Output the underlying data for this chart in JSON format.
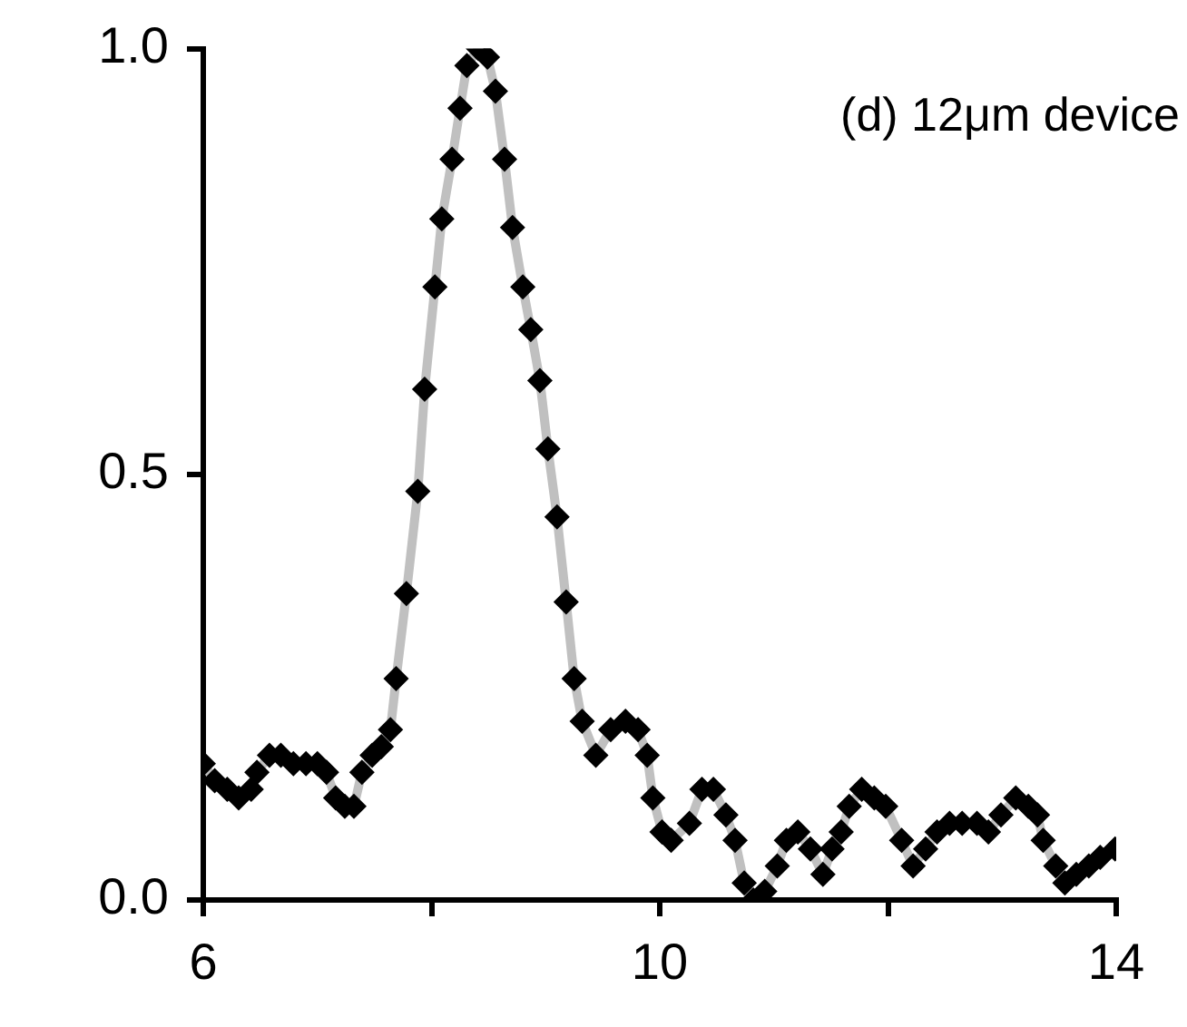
{
  "chart_data": {
    "type": "line",
    "annotations": [
      "(d) 12μm device"
    ],
    "xlim": [
      6,
      14
    ],
    "xticks": [
      6,
      {
        "value": 8,
        "label": null
      },
      10,
      {
        "value": 12,
        "label": null
      },
      14
    ],
    "ylim": [
      0,
      1
    ],
    "yticks": [
      {
        "value": 0,
        "label": "0.0"
      },
      {
        "value": 0.5,
        "label": "0.5"
      },
      {
        "value": 1,
        "label": "1.0"
      }
    ],
    "grid": false,
    "legend": false,
    "marker": "diamond",
    "line_style": "solid",
    "series": [
      {
        "color": "#000000",
        "x": [
          6.0,
          6.1,
          6.21,
          6.31,
          6.42,
          6.47,
          6.58,
          6.68,
          6.79,
          6.9,
          7.0,
          7.08,
          7.16,
          7.24,
          7.32,
          7.39,
          7.48,
          7.56,
          7.64,
          7.69,
          7.78,
          7.88,
          7.94,
          8.03,
          8.09,
          8.18,
          8.25,
          8.31,
          8.41,
          8.49,
          8.56,
          8.64,
          8.71,
          8.8,
          8.87,
          8.95,
          9.02,
          9.1,
          9.18,
          9.25,
          9.32,
          9.44,
          9.57,
          9.7,
          9.81,
          9.89,
          9.94,
          10.02,
          10.1,
          10.26,
          10.37,
          10.47,
          10.58,
          10.66,
          10.74,
          10.82,
          10.92,
          11.03,
          11.11,
          11.21,
          11.32,
          11.43,
          11.51,
          11.59,
          11.66,
          11.77,
          11.88,
          11.98,
          12.12,
          12.22,
          12.33,
          12.43,
          12.54,
          12.65,
          12.78,
          12.88,
          12.99,
          13.12,
          13.23,
          13.31,
          13.36,
          13.47,
          13.55,
          13.65,
          13.76,
          13.86,
          13.99
        ],
        "values": [
          0.16,
          0.14,
          0.13,
          0.12,
          0.13,
          0.15,
          0.17,
          0.17,
          0.16,
          0.16,
          0.16,
          0.15,
          0.12,
          0.11,
          0.11,
          0.15,
          0.17,
          0.18,
          0.2,
          0.26,
          0.36,
          0.48,
          0.6,
          0.72,
          0.8,
          0.87,
          0.93,
          0.98,
          1.0,
          0.99,
          0.95,
          0.87,
          0.79,
          0.72,
          0.67,
          0.61,
          0.53,
          0.45,
          0.35,
          0.26,
          0.21,
          0.17,
          0.2,
          0.21,
          0.2,
          0.17,
          0.12,
          0.08,
          0.07,
          0.09,
          0.13,
          0.13,
          0.1,
          0.07,
          0.02,
          0.0,
          0.01,
          0.04,
          0.07,
          0.08,
          0.06,
          0.03,
          0.06,
          0.08,
          0.11,
          0.13,
          0.12,
          0.11,
          0.07,
          0.04,
          0.06,
          0.08,
          0.09,
          0.09,
          0.09,
          0.08,
          0.1,
          0.12,
          0.11,
          0.1,
          0.07,
          0.04,
          0.02,
          0.03,
          0.04,
          0.05,
          0.06
        ]
      }
    ]
  }
}
